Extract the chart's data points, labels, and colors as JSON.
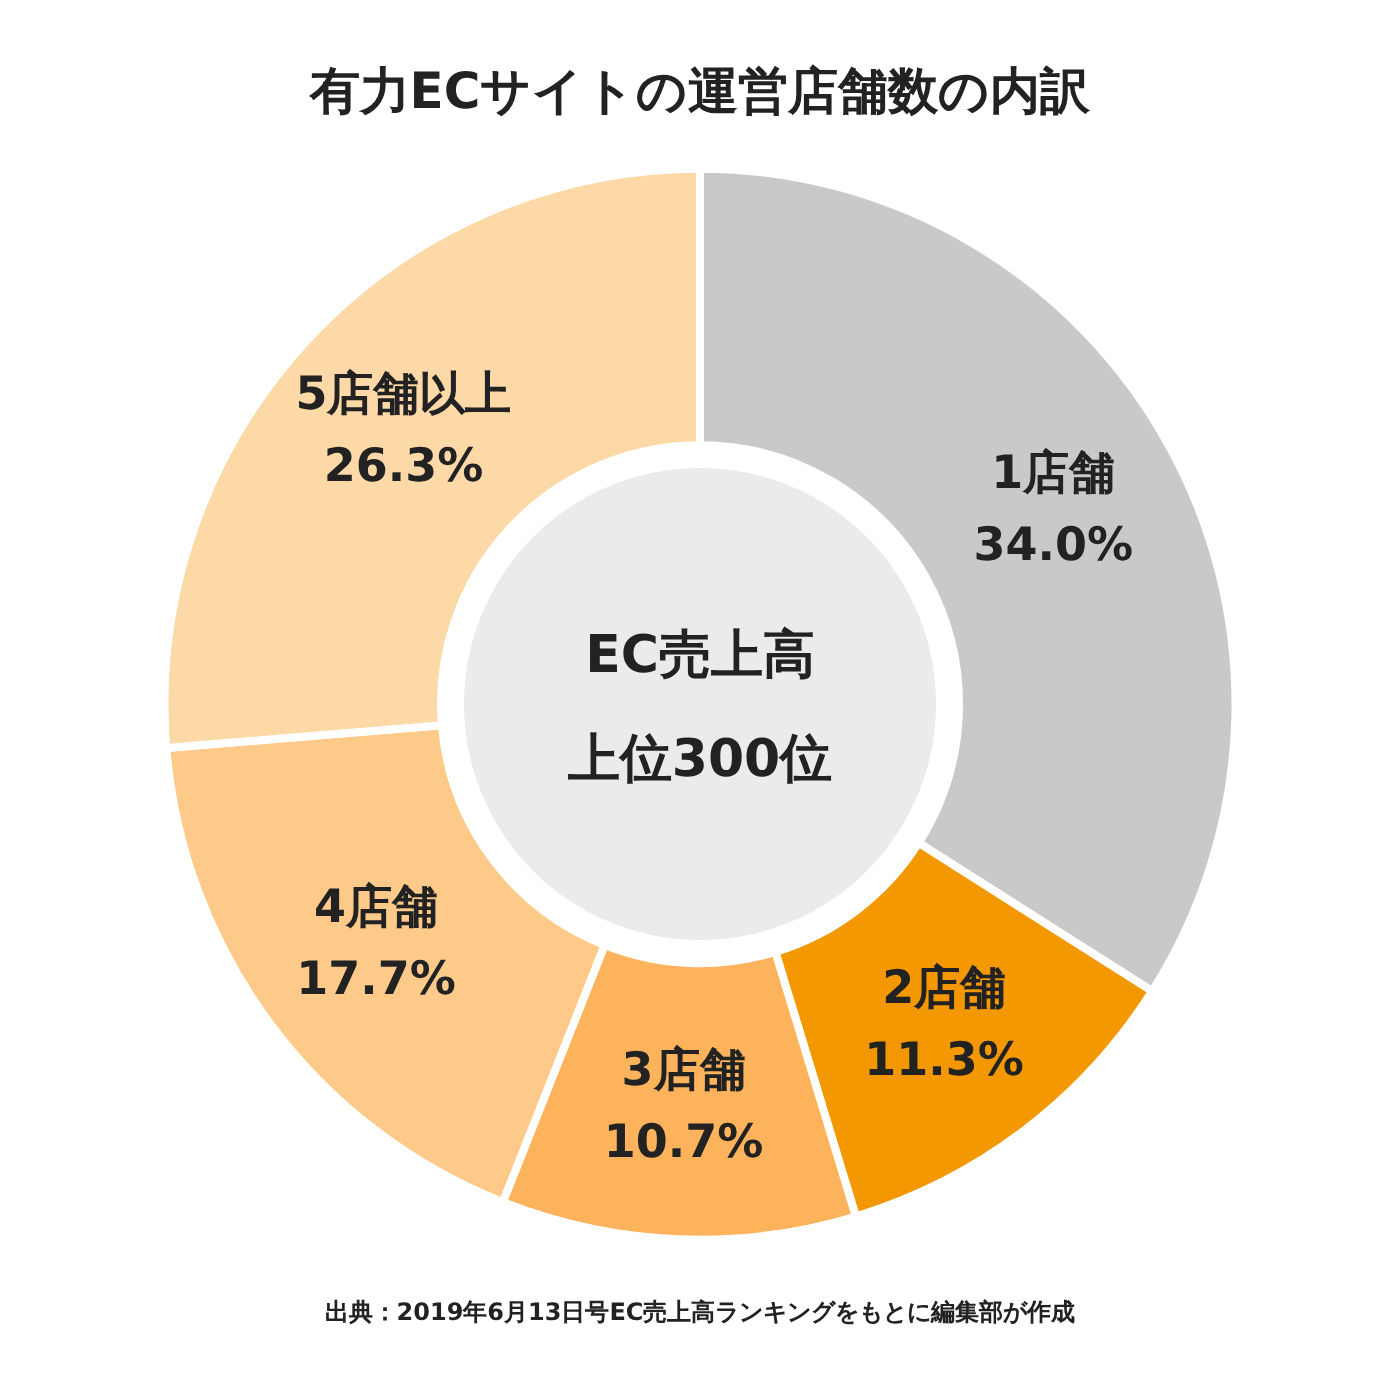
{
  "chart_data": {
    "type": "donut",
    "title": "有力ECサイトの運営店舗数の内訳",
    "categories": [
      "1店舗",
      "2店舗",
      "3店舗",
      "4店舗",
      "5店舗以上"
    ],
    "values": [
      34.0,
      11.3,
      10.7,
      17.7,
      26.3
    ],
    "value_labels": [
      "34.0%",
      "11.3%",
      "10.7%",
      "17.7%",
      "26.3%"
    ],
    "colors": [
      "#c9c9ca",
      "#f39800",
      "#fdb35c",
      "#fdca8a",
      "#fdd9a8"
    ],
    "legend": false,
    "annotations": [
      "EC売上高",
      "上位300位",
      "出典：2019年6月13日号EC売上高ランキングをもとに編集部が作成"
    ]
  }
}
